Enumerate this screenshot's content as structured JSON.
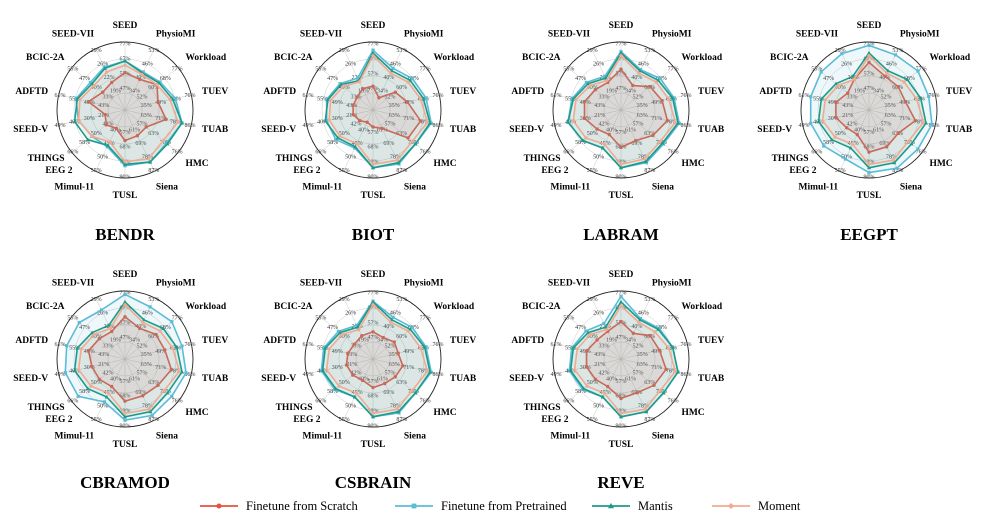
{
  "chart_data": {
    "type": "radar",
    "axes": [
      "SEED",
      "PhysioMI",
      "Workload",
      "TUEV",
      "TUAB",
      "HMC",
      "Siena",
      "TUSL",
      "Mimul-11",
      "THINGS EEG 2",
      "SEED-V",
      "ADFTD",
      "BCIC-2A",
      "SEED-VII"
    ],
    "axis_labels": [
      [
        "SEED"
      ],
      [
        "PhysioMI"
      ],
      [
        "Workload"
      ],
      [
        "TUEV"
      ],
      [
        "TUAB"
      ],
      [
        "HMC"
      ],
      [
        "Siena"
      ],
      [
        "TUSL"
      ],
      [
        "Mimul-11"
      ],
      [
        "THINGS",
        "EEG 2"
      ],
      [
        "SEED-V"
      ],
      [
        "ADFTD"
      ],
      [
        "BCIC-2A"
      ],
      [
        "SEED-VII"
      ]
    ],
    "tick_labels": [
      [
        "77%",
        "67%",
        "57%",
        "47%"
      ],
      [
        "53%",
        "46%",
        "40%",
        "34%"
      ],
      [
        "77%",
        "68%",
        "60%",
        "52%"
      ],
      [
        "76%",
        "62%",
        "49%",
        "35%"
      ],
      [
        "86%",
        "78%",
        "71%",
        "63%"
      ],
      [
        "76%",
        "70%",
        "63%",
        "57%"
      ],
      [
        "87%",
        "78%",
        "69%",
        "61%"
      ],
      [
        "90%",
        "79%",
        "68%",
        "57%"
      ],
      [
        "55%",
        "50%",
        "45%",
        "40%"
      ],
      [
        "66%",
        "58%",
        "50%",
        "42%"
      ],
      [
        "49%",
        "40%",
        "30%",
        "21%"
      ],
      [
        "61%",
        "55%",
        "49%",
        "43%"
      ],
      [
        "55%",
        "47%",
        "40%",
        "33%"
      ],
      [
        "29%",
        "26%",
        "22%",
        "19%"
      ]
    ],
    "series_names": [
      "Finetune from Scratch",
      "Finetune from Pretrained",
      "Mantis",
      "Moment"
    ],
    "colors": {
      "scratch": "#e8533f",
      "pretrained": "#5bbcd6",
      "mantis": "#1f9a8a",
      "moment": "#f2a98f"
    },
    "panels": [
      {
        "title": "BENDR",
        "series": [
          [
            0.55,
            0.5,
            0.6,
            0.5,
            0.62,
            0.4,
            0.42,
            0.45,
            0.3,
            0.35,
            0.3,
            0.55,
            0.42,
            0.45
          ],
          [
            0.72,
            0.62,
            0.66,
            0.76,
            0.86,
            0.78,
            0.85,
            0.82,
            0.6,
            0.62,
            0.7,
            0.74,
            0.65,
            0.7
          ],
          [
            0.72,
            0.6,
            0.64,
            0.72,
            0.86,
            0.8,
            0.85,
            0.8,
            0.58,
            0.7,
            0.76,
            0.72,
            0.62,
            0.68
          ],
          [
            0.66,
            0.58,
            0.6,
            0.68,
            0.8,
            0.72,
            0.8,
            0.76,
            0.52,
            0.62,
            0.7,
            0.68,
            0.58,
            0.62
          ]
        ]
      },
      {
        "title": "BIOT",
        "series": [
          [
            0.35,
            0.2,
            0.42,
            0.52,
            0.72,
            0.66,
            0.3,
            0.25,
            0.2,
            0.25,
            0.3,
            0.3,
            0.3,
            0.35
          ],
          [
            0.88,
            0.68,
            0.74,
            0.8,
            0.88,
            0.8,
            0.88,
            0.85,
            0.62,
            0.7,
            0.7,
            0.7,
            0.62,
            0.52
          ],
          [
            0.84,
            0.64,
            0.7,
            0.76,
            0.86,
            0.8,
            0.86,
            0.85,
            0.6,
            0.66,
            0.72,
            0.68,
            0.6,
            0.48
          ],
          [
            0.8,
            0.6,
            0.66,
            0.72,
            0.82,
            0.74,
            0.82,
            0.8,
            0.55,
            0.62,
            0.66,
            0.64,
            0.56,
            0.46
          ]
        ]
      },
      {
        "title": "LABRAM",
        "series": [
          [
            0.6,
            0.4,
            0.55,
            0.62,
            0.7,
            0.6,
            0.5,
            0.55,
            0.4,
            0.45,
            0.55,
            0.55,
            0.48,
            0.45
          ],
          [
            0.86,
            0.66,
            0.74,
            0.8,
            0.88,
            0.8,
            0.86,
            0.85,
            0.62,
            0.72,
            0.8,
            0.74,
            0.65,
            0.55
          ],
          [
            0.84,
            0.64,
            0.7,
            0.78,
            0.86,
            0.78,
            0.84,
            0.85,
            0.62,
            0.72,
            0.8,
            0.72,
            0.62,
            0.52
          ],
          [
            0.8,
            0.6,
            0.66,
            0.72,
            0.82,
            0.74,
            0.8,
            0.8,
            0.56,
            0.66,
            0.72,
            0.68,
            0.58,
            0.48
          ]
        ]
      },
      {
        "title": "EEGPT",
        "series": [
          [
            0.7,
            0.55,
            0.55,
            0.55,
            0.7,
            0.55,
            0.6,
            0.62,
            0.4,
            0.42,
            0.5,
            0.5,
            0.4,
            0.5
          ],
          [
            0.95,
            0.9,
            0.92,
            0.9,
            0.95,
            0.92,
            0.95,
            0.92,
            0.8,
            0.85,
            0.88,
            0.88,
            0.9,
            0.92
          ],
          [
            0.84,
            0.64,
            0.72,
            0.78,
            0.86,
            0.8,
            0.86,
            0.85,
            0.62,
            0.7,
            0.76,
            0.72,
            0.62,
            0.55
          ],
          [
            0.8,
            0.6,
            0.66,
            0.72,
            0.82,
            0.74,
            0.82,
            0.8,
            0.56,
            0.64,
            0.7,
            0.66,
            0.58,
            0.5
          ]
        ]
      },
      {
        "title": "CBRAMOD",
        "series": [
          [
            0.62,
            0.5,
            0.58,
            0.6,
            0.7,
            0.62,
            0.6,
            0.62,
            0.45,
            0.48,
            0.5,
            0.55,
            0.48,
            0.45
          ],
          [
            0.95,
            0.85,
            0.88,
            0.86,
            0.92,
            0.88,
            0.92,
            0.9,
            0.7,
            0.88,
            0.9,
            0.88,
            0.86,
            0.8
          ],
          [
            0.84,
            0.64,
            0.72,
            0.78,
            0.86,
            0.8,
            0.86,
            0.85,
            0.62,
            0.7,
            0.76,
            0.72,
            0.62,
            0.55
          ],
          [
            0.8,
            0.6,
            0.66,
            0.72,
            0.82,
            0.74,
            0.82,
            0.8,
            0.56,
            0.64,
            0.7,
            0.66,
            0.58,
            0.5
          ]
        ]
      },
      {
        "title": "CSBRAIN",
        "series": [
          [
            0.4,
            0.35,
            0.4,
            0.38,
            0.45,
            0.42,
            0.4,
            0.42,
            0.35,
            0.38,
            0.4,
            0.38,
            0.35,
            0.38
          ],
          [
            0.85,
            0.68,
            0.74,
            0.8,
            0.88,
            0.8,
            0.88,
            0.85,
            0.62,
            0.72,
            0.78,
            0.74,
            0.65,
            0.55
          ],
          [
            0.84,
            0.64,
            0.7,
            0.78,
            0.86,
            0.8,
            0.86,
            0.85,
            0.62,
            0.7,
            0.76,
            0.72,
            0.62,
            0.52
          ],
          [
            0.8,
            0.6,
            0.66,
            0.72,
            0.82,
            0.74,
            0.82,
            0.8,
            0.56,
            0.64,
            0.7,
            0.66,
            0.58,
            0.48
          ]
        ]
      },
      {
        "title": "REVE",
        "series": [
          [
            0.55,
            0.42,
            0.55,
            0.58,
            0.68,
            0.62,
            0.55,
            0.58,
            0.45,
            0.48,
            0.52,
            0.52,
            0.45,
            0.45
          ],
          [
            0.92,
            0.66,
            0.72,
            0.78,
            0.86,
            0.8,
            0.86,
            0.85,
            0.62,
            0.72,
            0.78,
            0.74,
            0.66,
            0.58
          ],
          [
            0.84,
            0.64,
            0.7,
            0.78,
            0.86,
            0.8,
            0.86,
            0.85,
            0.62,
            0.7,
            0.76,
            0.72,
            0.62,
            0.52
          ],
          [
            0.78,
            0.6,
            0.64,
            0.72,
            0.82,
            0.74,
            0.82,
            0.8,
            0.56,
            0.64,
            0.7,
            0.66,
            0.58,
            0.48
          ]
        ]
      }
    ],
    "grid": true,
    "legend_position": "bottom"
  }
}
